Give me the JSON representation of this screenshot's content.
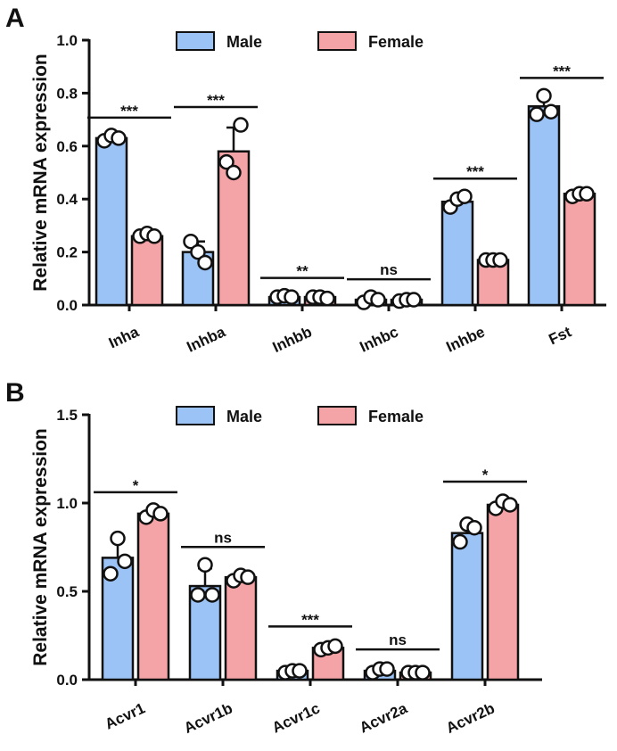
{
  "colors": {
    "male": "#9CC3F5",
    "female": "#F4A3A6",
    "ink": "#111111"
  },
  "chart_data": [
    {
      "type": "bar",
      "panel": "A",
      "ylabel": "Relative mRNA expression",
      "ylim": [
        0,
        1.0
      ],
      "yticks": [
        "0.0",
        "0.2",
        "0.4",
        "0.6",
        "0.8",
        "1.0"
      ],
      "categories": [
        "Inha",
        "Inhba",
        "Inhbb",
        "Inhbc",
        "Inhbe",
        "Fst"
      ],
      "significance": [
        "***",
        "***",
        "**",
        "ns",
        "***",
        "***"
      ],
      "series": [
        {
          "name": "Male",
          "values": [
            0.63,
            0.2,
            0.03,
            0.02,
            0.39,
            0.75
          ],
          "errors": [
            0.01,
            0.04,
            0.005,
            0.01,
            0.02,
            0.04
          ],
          "points": [
            [
              0.62,
              0.64,
              0.63
            ],
            [
              0.24,
              0.2,
              0.16
            ],
            [
              0.03,
              0.035,
              0.03
            ],
            [
              0.01,
              0.03,
              0.02
            ],
            [
              0.37,
              0.4,
              0.41
            ],
            [
              0.72,
              0.79,
              0.73
            ]
          ]
        },
        {
          "name": "Female",
          "values": [
            0.26,
            0.58,
            0.03,
            0.02,
            0.17,
            0.42
          ],
          "errors": [
            0.01,
            0.09,
            0.005,
            0.005,
            0.01,
            0.01
          ],
          "points": [
            [
              0.26,
              0.27,
              0.26
            ],
            [
              0.54,
              0.5,
              0.68
            ],
            [
              0.03,
              0.03,
              0.025
            ],
            [
              0.015,
              0.02,
              0.02
            ],
            [
              0.17,
              0.17,
              0.17
            ],
            [
              0.41,
              0.42,
              0.42
            ]
          ]
        }
      ],
      "legend": [
        "Male",
        "Female"
      ],
      "legend_position": "top"
    },
    {
      "type": "bar",
      "panel": "B",
      "ylabel": "Relative mRNA expression",
      "ylim": [
        0,
        1.5
      ],
      "yticks": [
        "0.0",
        "0.5",
        "1.0",
        "1.5"
      ],
      "categories": [
        "Acvr1",
        "Acvr1b",
        "Acvr1c",
        "Acvr2a",
        "Acvr2b"
      ],
      "significance": [
        "*",
        "ns",
        "***",
        "ns",
        "*"
      ],
      "series": [
        {
          "name": "Male",
          "values": [
            0.69,
            0.53,
            0.05,
            0.05,
            0.83
          ],
          "errors": [
            0.1,
            0.1,
            0.01,
            0.02,
            0.05
          ],
          "points": [
            [
              0.6,
              0.8,
              0.67
            ],
            [
              0.48,
              0.65,
              0.48
            ],
            [
              0.04,
              0.05,
              0.05
            ],
            [
              0.04,
              0.06,
              0.06
            ],
            [
              0.78,
              0.88,
              0.86
            ]
          ]
        },
        {
          "name": "Female",
          "values": [
            0.94,
            0.58,
            0.18,
            0.04,
            0.99
          ],
          "errors": [
            0.02,
            0.02,
            0.02,
            0.005,
            0.03
          ],
          "points": [
            [
              0.92,
              0.96,
              0.94
            ],
            [
              0.56,
              0.59,
              0.58
            ],
            [
              0.17,
              0.18,
              0.19
            ],
            [
              0.04,
              0.04,
              0.04
            ],
            [
              0.97,
              1.01,
              0.99
            ]
          ]
        }
      ],
      "legend": [
        "Male",
        "Female"
      ],
      "legend_position": "top"
    }
  ]
}
